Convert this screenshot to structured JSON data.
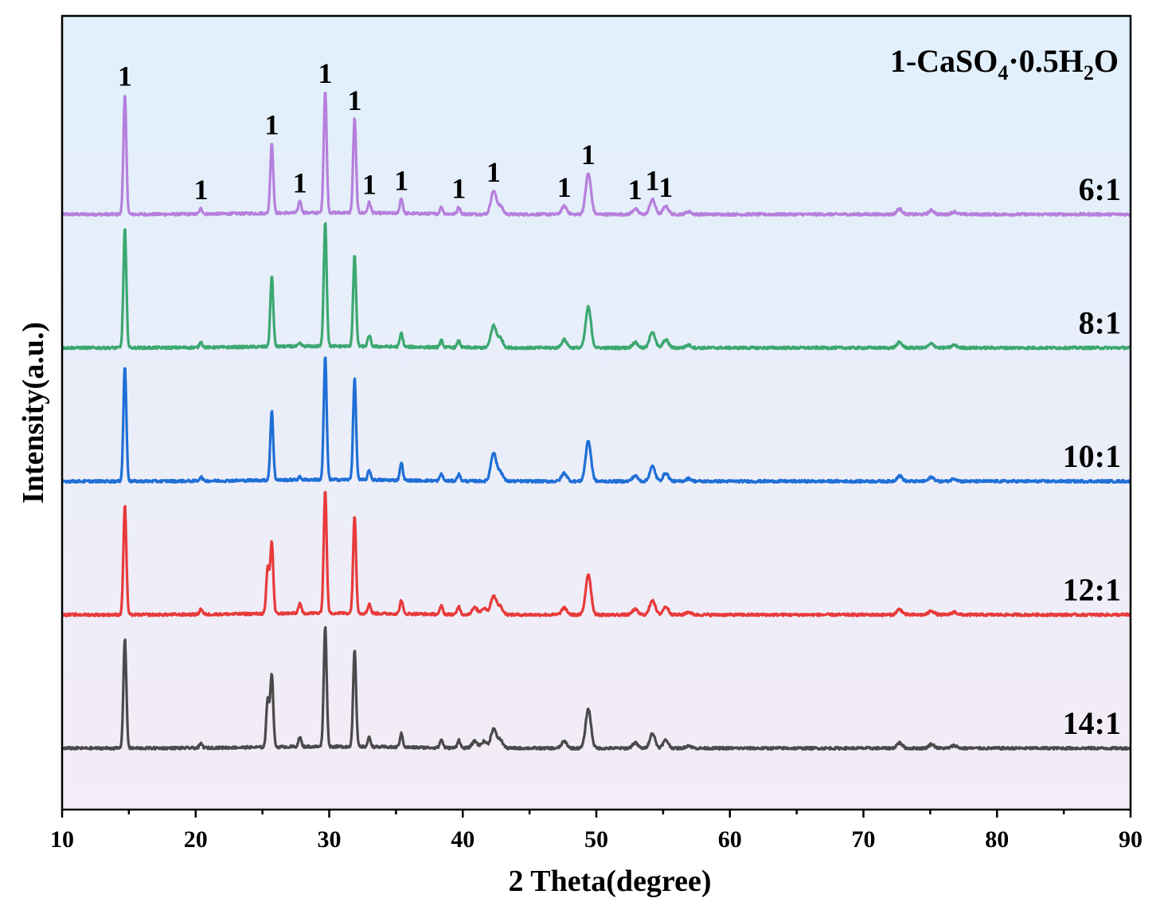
{
  "chart_data": {
    "type": "line",
    "xlabel": "2 Theta(degree)",
    "ylabel": "Intensity(a.u.)",
    "xlim": [
      10,
      90
    ],
    "x_ticks": [
      "10",
      "20",
      "30",
      "40",
      "50",
      "60",
      "70",
      "80",
      "90"
    ],
    "y_ticks_labeled": false,
    "background_gradient": [
      "#e0f0fc",
      "#f4ecf6"
    ],
    "legend": {
      "prefix": "1-CaSO",
      "sub1": "4",
      "middle": "·0.5H",
      "sub2": "2",
      "suffix": "O"
    },
    "peak_marker": "1",
    "peak_positions": [
      14.7,
      20.4,
      25.7,
      27.8,
      29.7,
      31.9,
      33.0,
      35.4,
      39.7,
      42.3,
      47.6,
      49.4,
      52.9,
      54.2,
      55.2
    ],
    "series": [
      {
        "name": "6:1",
        "color": "#b67fdc",
        "offset": 4,
        "peaks": [
          [
            14.7,
            0.88
          ],
          [
            20.4,
            0.04
          ],
          [
            25.7,
            0.52
          ],
          [
            27.8,
            0.09
          ],
          [
            29.7,
            0.9
          ],
          [
            31.9,
            0.7
          ],
          [
            33.0,
            0.08
          ],
          [
            35.4,
            0.11
          ],
          [
            38.4,
            0.05
          ],
          [
            39.7,
            0.05
          ],
          [
            42.3,
            0.17
          ],
          [
            42.8,
            0.06
          ],
          [
            47.6,
            0.06
          ],
          [
            49.4,
            0.3
          ],
          [
            52.9,
            0.04
          ],
          [
            54.2,
            0.11
          ],
          [
            55.2,
            0.06
          ],
          [
            56.9,
            0.02
          ],
          [
            72.7,
            0.04
          ],
          [
            75.1,
            0.03
          ],
          [
            76.8,
            0.02
          ]
        ]
      },
      {
        "name": "8:1",
        "color": "#3ba870",
        "offset": 3,
        "peaks": [
          [
            14.7,
            0.88
          ],
          [
            20.4,
            0.04
          ],
          [
            25.7,
            0.52
          ],
          [
            27.8,
            0.02
          ],
          [
            29.7,
            0.92
          ],
          [
            31.9,
            0.67
          ],
          [
            33.0,
            0.08
          ],
          [
            35.4,
            0.1
          ],
          [
            38.4,
            0.05
          ],
          [
            39.7,
            0.05
          ],
          [
            42.3,
            0.16
          ],
          [
            42.8,
            0.07
          ],
          [
            47.6,
            0.06
          ],
          [
            49.4,
            0.3
          ],
          [
            52.9,
            0.04
          ],
          [
            54.2,
            0.12
          ],
          [
            55.2,
            0.06
          ],
          [
            56.9,
            0.02
          ],
          [
            72.7,
            0.04
          ],
          [
            75.1,
            0.03
          ],
          [
            76.8,
            0.02
          ]
        ]
      },
      {
        "name": "10:1",
        "color": "#1f6fd6",
        "offset": 2,
        "peaks": [
          [
            14.7,
            0.85
          ],
          [
            20.4,
            0.03
          ],
          [
            25.7,
            0.51
          ],
          [
            27.8,
            0.02
          ],
          [
            29.7,
            0.91
          ],
          [
            31.9,
            0.75
          ],
          [
            33.0,
            0.07
          ],
          [
            35.4,
            0.13
          ],
          [
            38.4,
            0.05
          ],
          [
            39.7,
            0.05
          ],
          [
            42.3,
            0.21
          ],
          [
            42.8,
            0.07
          ],
          [
            47.6,
            0.06
          ],
          [
            49.4,
            0.3
          ],
          [
            52.9,
            0.04
          ],
          [
            54.2,
            0.11
          ],
          [
            55.2,
            0.06
          ],
          [
            56.9,
            0.02
          ],
          [
            72.7,
            0.04
          ],
          [
            75.1,
            0.03
          ],
          [
            76.8,
            0.02
          ]
        ]
      },
      {
        "name": "12:1",
        "color": "#e83a3a",
        "offset": 1,
        "peaks": [
          [
            14.7,
            0.81
          ],
          [
            20.4,
            0.04
          ],
          [
            25.4,
            0.34
          ],
          [
            25.7,
            0.53
          ],
          [
            27.8,
            0.07
          ],
          [
            29.7,
            0.91
          ],
          [
            31.9,
            0.72
          ],
          [
            33.0,
            0.07
          ],
          [
            35.4,
            0.1
          ],
          [
            38.4,
            0.06
          ],
          [
            39.7,
            0.06
          ],
          [
            40.9,
            0.05
          ],
          [
            41.6,
            0.05
          ],
          [
            42.3,
            0.14
          ],
          [
            42.8,
            0.06
          ],
          [
            47.6,
            0.05
          ],
          [
            49.4,
            0.3
          ],
          [
            52.9,
            0.04
          ],
          [
            54.2,
            0.11
          ],
          [
            55.2,
            0.06
          ],
          [
            56.9,
            0.02
          ],
          [
            72.7,
            0.04
          ],
          [
            75.1,
            0.03
          ],
          [
            76.8,
            0.02
          ]
        ]
      },
      {
        "name": "14:1",
        "color": "#4a4a4a",
        "offset": 0,
        "peaks": [
          [
            14.7,
            0.81
          ],
          [
            20.4,
            0.03
          ],
          [
            25.4,
            0.36
          ],
          [
            25.7,
            0.54
          ],
          [
            27.8,
            0.07
          ],
          [
            29.7,
            0.89
          ],
          [
            31.9,
            0.72
          ],
          [
            33.0,
            0.07
          ],
          [
            35.4,
            0.1
          ],
          [
            38.4,
            0.06
          ],
          [
            39.7,
            0.06
          ],
          [
            40.9,
            0.05
          ],
          [
            41.6,
            0.05
          ],
          [
            42.3,
            0.14
          ],
          [
            42.8,
            0.06
          ],
          [
            47.6,
            0.05
          ],
          [
            49.4,
            0.29
          ],
          [
            52.9,
            0.04
          ],
          [
            54.2,
            0.11
          ],
          [
            55.2,
            0.06
          ],
          [
            56.9,
            0.02
          ],
          [
            72.7,
            0.04
          ],
          [
            75.1,
            0.03
          ],
          [
            76.8,
            0.02
          ]
        ]
      }
    ]
  }
}
